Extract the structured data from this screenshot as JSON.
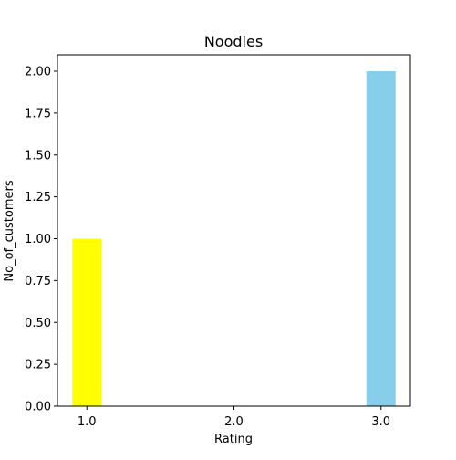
{
  "chart_data": {
    "type": "bar",
    "title": "Noodles",
    "xlabel": "Rating",
    "ylabel": "No_of_customers",
    "x": [
      1.0,
      2.0,
      3.0
    ],
    "x_tick_labels": [
      "1.0",
      "2.0",
      "3.0"
    ],
    "bars": [
      {
        "x": 1.0,
        "value": 1,
        "color": "#ffff00"
      },
      {
        "x": 3.0,
        "value": 2,
        "color": "#87ceeb"
      }
    ],
    "ylim": [
      0,
      2.0
    ],
    "y_ticks": [
      0.0,
      0.25,
      0.5,
      0.75,
      1.0,
      1.25,
      1.5,
      1.75,
      2.0
    ],
    "y_tick_labels": [
      "0.00",
      "0.25",
      "0.50",
      "0.75",
      "1.00",
      "1.25",
      "1.50",
      "1.75",
      "2.00"
    ],
    "grid": false,
    "legend": "none"
  }
}
